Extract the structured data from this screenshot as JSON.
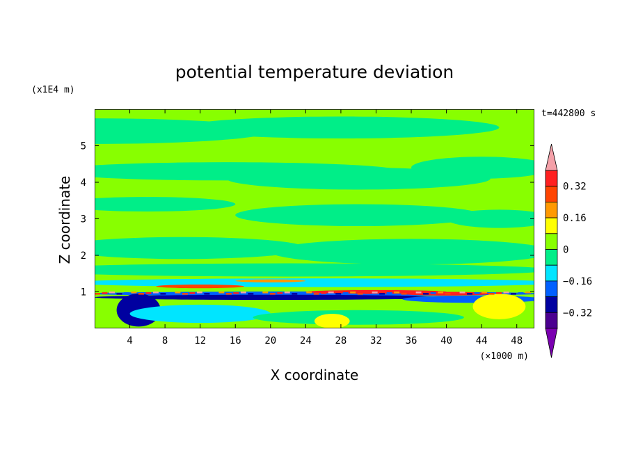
{
  "chart_data": {
    "type": "heatmap",
    "title": "potential temperature deviation",
    "xlabel": "X coordinate",
    "ylabel": "Z coordinate",
    "x_unit": "(×1000 m)",
    "y_unit": "(x1E4 m)",
    "time_label": "t=442800 s",
    "x_ticks": [
      4,
      8,
      12,
      16,
      20,
      24,
      28,
      32,
      36,
      40,
      44,
      48
    ],
    "y_ticks": [
      1,
      2,
      3,
      4,
      5
    ],
    "xlim": [
      0,
      50
    ],
    "ylim": [
      0,
      6
    ],
    "colorbar": {
      "levels": [
        -0.48,
        -0.4,
        -0.32,
        -0.24,
        -0.16,
        -0.08,
        0,
        0.08,
        0.16,
        0.24,
        0.32,
        0.4
      ],
      "labels": [
        "0.32",
        "0.16",
        "0",
        "−0.16",
        "−0.32"
      ],
      "label_values": [
        0.32,
        0.16,
        0,
        -0.16,
        -0.32
      ],
      "colors": [
        "#7a00b0",
        "#4b0090",
        "#0000a0",
        "#0060ff",
        "#00e5ff",
        "#00ee88",
        "#88ff00",
        "#ffff00",
        "#ff9900",
        "#ff4400",
        "#ff2020",
        "#f4a0a8"
      ],
      "extend": "both"
    },
    "regions": [
      {
        "description_level": -0.04,
        "note": "upper atmosphere alternating between slightly negative and slightly positive layers"
      },
      {
        "description_level": 0.4,
        "note": "strong positive and negative anomalies near z ~ 0.9–1.0 (x1E4 m)"
      }
    ]
  }
}
